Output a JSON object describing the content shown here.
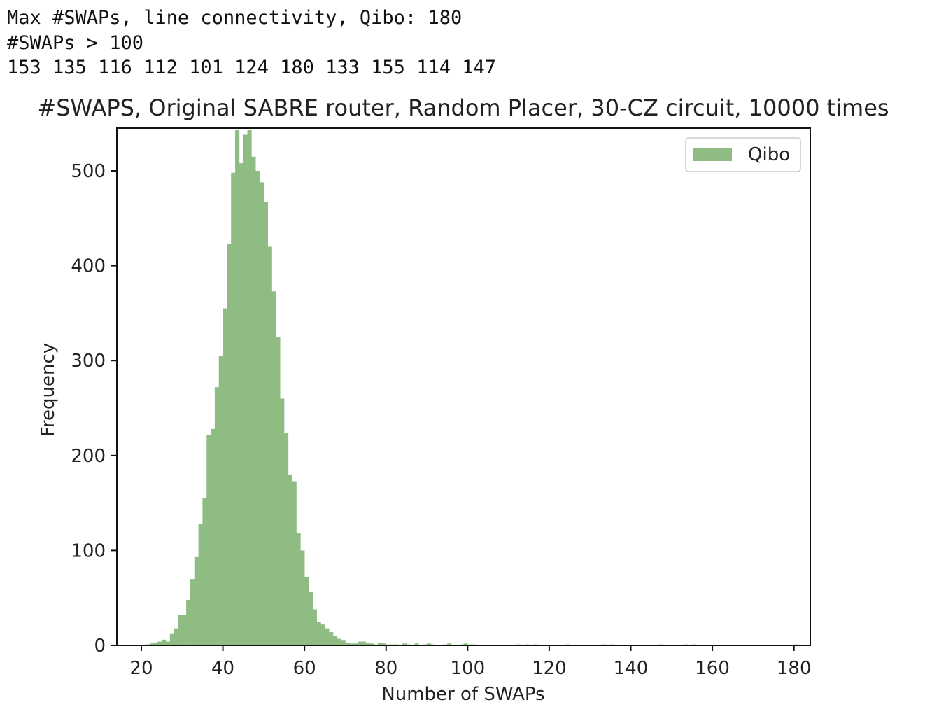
{
  "console_output": {
    "line1": "Max #SWAPs, line connectivity, Qibo: 180",
    "line2": "#SWAPs > 100",
    "line3": "153 135 116 112 101 124 180 133 155 114 147"
  },
  "chart_data": {
    "type": "bar",
    "title": "#SWAPS, Original SABRE router, Random Placer, 30-CZ circuit, 10000 times",
    "xlabel": "Number of SWAPs",
    "ylabel": "Frequency",
    "xlim": [
      14,
      184
    ],
    "ylim": [
      0,
      545
    ],
    "xticks": [
      20,
      40,
      60,
      80,
      100,
      120,
      140,
      160,
      180
    ],
    "yticks": [
      0,
      100,
      200,
      300,
      400,
      500
    ],
    "bin_width": 1,
    "grid": false,
    "legend_position": "top-right",
    "color": "#8fbc82",
    "series": [
      {
        "name": "Qibo",
        "bins": [
          {
            "x": 21,
            "y": 1
          },
          {
            "x": 22,
            "y": 2
          },
          {
            "x": 23,
            "y": 3
          },
          {
            "x": 24,
            "y": 4
          },
          {
            "x": 25,
            "y": 6
          },
          {
            "x": 26,
            "y": 4
          },
          {
            "x": 27,
            "y": 12
          },
          {
            "x": 28,
            "y": 18
          },
          {
            "x": 29,
            "y": 32
          },
          {
            "x": 30,
            "y": 32
          },
          {
            "x": 31,
            "y": 48
          },
          {
            "x": 32,
            "y": 70
          },
          {
            "x": 33,
            "y": 93
          },
          {
            "x": 34,
            "y": 128
          },
          {
            "x": 35,
            "y": 155
          },
          {
            "x": 36,
            "y": 222
          },
          {
            "x": 37,
            "y": 228
          },
          {
            "x": 38,
            "y": 272
          },
          {
            "x": 39,
            "y": 305
          },
          {
            "x": 40,
            "y": 355
          },
          {
            "x": 41,
            "y": 423
          },
          {
            "x": 42,
            "y": 498
          },
          {
            "x": 43,
            "y": 543
          },
          {
            "x": 44,
            "y": 508
          },
          {
            "x": 45,
            "y": 538
          },
          {
            "x": 46,
            "y": 543
          },
          {
            "x": 47,
            "y": 515
          },
          {
            "x": 48,
            "y": 500
          },
          {
            "x": 49,
            "y": 488
          },
          {
            "x": 50,
            "y": 467
          },
          {
            "x": 51,
            "y": 420
          },
          {
            "x": 52,
            "y": 373
          },
          {
            "x": 53,
            "y": 325
          },
          {
            "x": 54,
            "y": 260
          },
          {
            "x": 55,
            "y": 224
          },
          {
            "x": 56,
            "y": 180
          },
          {
            "x": 57,
            "y": 173
          },
          {
            "x": 58,
            "y": 118
          },
          {
            "x": 59,
            "y": 100
          },
          {
            "x": 60,
            "y": 72
          },
          {
            "x": 61,
            "y": 56
          },
          {
            "x": 62,
            "y": 38
          },
          {
            "x": 63,
            "y": 25
          },
          {
            "x": 64,
            "y": 22
          },
          {
            "x": 65,
            "y": 18
          },
          {
            "x": 66,
            "y": 14
          },
          {
            "x": 67,
            "y": 10
          },
          {
            "x": 68,
            "y": 7
          },
          {
            "x": 69,
            "y": 5
          },
          {
            "x": 70,
            "y": 3
          },
          {
            "x": 71,
            "y": 2
          },
          {
            "x": 72,
            "y": 2
          },
          {
            "x": 73,
            "y": 4
          },
          {
            "x": 74,
            "y": 4
          },
          {
            "x": 75,
            "y": 3
          },
          {
            "x": 76,
            "y": 2
          },
          {
            "x": 77,
            "y": 1
          },
          {
            "x": 78,
            "y": 3
          },
          {
            "x": 79,
            "y": 2
          },
          {
            "x": 80,
            "y": 1
          },
          {
            "x": 81,
            "y": 1
          },
          {
            "x": 82,
            "y": 1
          },
          {
            "x": 84,
            "y": 2
          },
          {
            "x": 85,
            "y": 1
          },
          {
            "x": 87,
            "y": 2
          },
          {
            "x": 89,
            "y": 1
          },
          {
            "x": 90,
            "y": 2
          },
          {
            "x": 91,
            "y": 1
          },
          {
            "x": 94,
            "y": 1
          },
          {
            "x": 95,
            "y": 2
          },
          {
            "x": 98,
            "y": 1
          },
          {
            "x": 99,
            "y": 2
          },
          {
            "x": 100,
            "y": 1
          },
          {
            "x": 101,
            "y": 1
          },
          {
            "x": 112,
            "y": 1
          },
          {
            "x": 114,
            "y": 1
          },
          {
            "x": 116,
            "y": 1
          },
          {
            "x": 124,
            "y": 1
          },
          {
            "x": 133,
            "y": 1
          },
          {
            "x": 135,
            "y": 1
          },
          {
            "x": 147,
            "y": 1
          },
          {
            "x": 153,
            "y": 1
          },
          {
            "x": 155,
            "y": 1
          },
          {
            "x": 180,
            "y": 1
          }
        ]
      }
    ]
  }
}
